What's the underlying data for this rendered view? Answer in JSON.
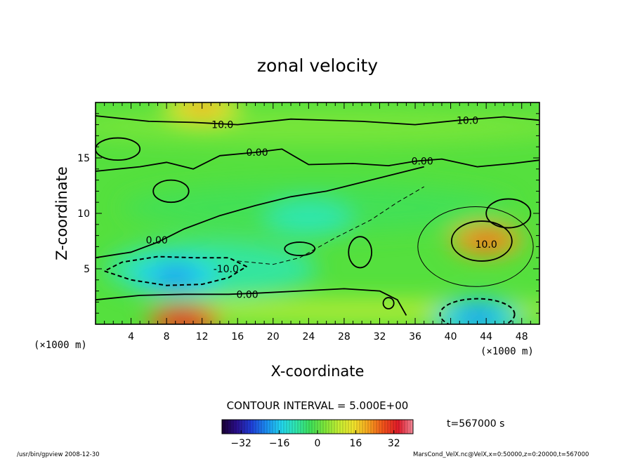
{
  "chart_data": {
    "type": "heatmap",
    "title": "zonal velocity",
    "xlabel": "X-coordinate",
    "ylabel": "Z-coordinate",
    "x_unit_label": "(×1000 m)",
    "y_unit_label": "(×1000 m)",
    "xlim": [
      0,
      50
    ],
    "ylim": [
      0,
      20
    ],
    "x_ticks": [
      4,
      8,
      12,
      16,
      20,
      24,
      28,
      32,
      36,
      40,
      44,
      48
    ],
    "y_ticks": [
      5,
      10,
      15
    ],
    "contour_interval_label": "CONTOUR INTERVAL = 5.000E+00",
    "time_label": "t=567000 s",
    "colorbar": {
      "range": [
        -40,
        40
      ],
      "ticks": [
        -32,
        -16,
        0,
        16,
        32
      ],
      "colors": [
        "#1a0033",
        "#2a0f8c",
        "#1f3fd8",
        "#1b8cf0",
        "#22d4f0",
        "#2fe6b0",
        "#3ee05a",
        "#7fe63a",
        "#c8ee32",
        "#f2e22c",
        "#f7a01e",
        "#f0501a",
        "#e01a2a",
        "#f58a9a"
      ]
    },
    "contour_labels": [
      {
        "text": "10.0",
        "x": 14.3,
        "z": 18.0
      },
      {
        "text": "10.0",
        "x": 41.9,
        "z": 18.4
      },
      {
        "text": "0.00",
        "x": 18.2,
        "z": 15.5
      },
      {
        "text": "0.00",
        "x": 36.8,
        "z": 14.7
      },
      {
        "text": "0.00",
        "x": 6.9,
        "z": 7.6
      },
      {
        "text": "-10.0",
        "x": 14.7,
        "z": 5.0
      },
      {
        "text": "0.00",
        "x": 17.1,
        "z": 2.7
      },
      {
        "text": "10.0",
        "x": 44.0,
        "z": 7.2
      }
    ],
    "field_features": [
      {
        "kind": "min",
        "x": 9,
        "z": 4.3,
        "value": -18
      },
      {
        "kind": "min",
        "x": 43,
        "z": 0.6,
        "value": -16
      },
      {
        "kind": "min",
        "x": 24,
        "z": 9.5,
        "value": -8
      },
      {
        "kind": "max",
        "x": 10,
        "z": 0.3,
        "value": 26
      },
      {
        "kind": "max",
        "x": 44,
        "z": 7.6,
        "value": 20
      },
      {
        "kind": "max",
        "x": 12,
        "z": 19.6,
        "value": 18
      }
    ]
  },
  "footer": {
    "left": "/usr/bin/gpview   2008-12-30",
    "right": "MarsCond_VelX.nc@VelX,x=0:50000,z=0:20000,t=567000"
  }
}
